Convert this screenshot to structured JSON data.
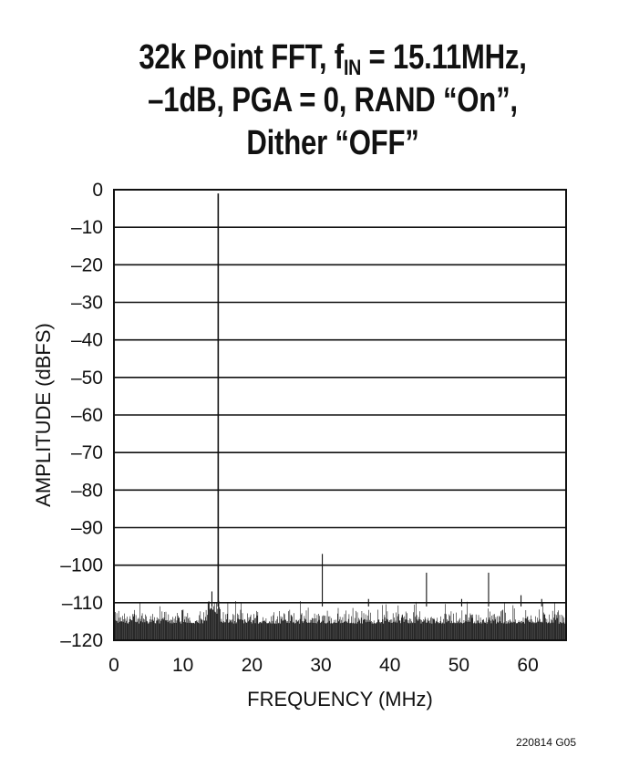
{
  "title": {
    "line1_pre": "32k Point FFT, f",
    "line1_sub": "IN",
    "line1_post": " = 15.11MHz,",
    "line2": "–1dB, PGA = 0, RAND “On”,",
    "line3": "Dither “OFF”"
  },
  "figure_code": "220814 G05",
  "chart_data": {
    "type": "line",
    "xlabel": "FREQUENCY (MHz)",
    "ylabel": "AMPLITUDE (dBFS)",
    "xlim": [
      0,
      65.536
    ],
    "ylim": [
      -120,
      0
    ],
    "xticks": [
      0,
      10,
      20,
      30,
      40,
      50,
      60
    ],
    "yticks": [
      0,
      -10,
      -20,
      -30,
      -40,
      -50,
      -60,
      -70,
      -80,
      -90,
      -100,
      -110,
      -120
    ],
    "ytick_labels": [
      "0",
      "–10",
      "–20",
      "–30",
      "–40",
      "–50",
      "–60",
      "–70",
      "–80",
      "–90",
      "–100",
      "–110",
      "–120"
    ],
    "grid": "horizontal",
    "noise_floor": {
      "min": -118,
      "max": -111
    },
    "peaks": [
      {
        "freq": 14.2,
        "amp": -107
      },
      {
        "freq": 15.11,
        "amp": -1
      },
      {
        "freq": 30.2,
        "amp": -97
      },
      {
        "freq": 36.9,
        "amp": -109
      },
      {
        "freq": 45.3,
        "amp": -102
      },
      {
        "freq": 50.4,
        "amp": -109
      },
      {
        "freq": 54.3,
        "amp": -102
      },
      {
        "freq": 59.0,
        "amp": -108
      },
      {
        "freq": 62.0,
        "amp": -109
      }
    ]
  }
}
